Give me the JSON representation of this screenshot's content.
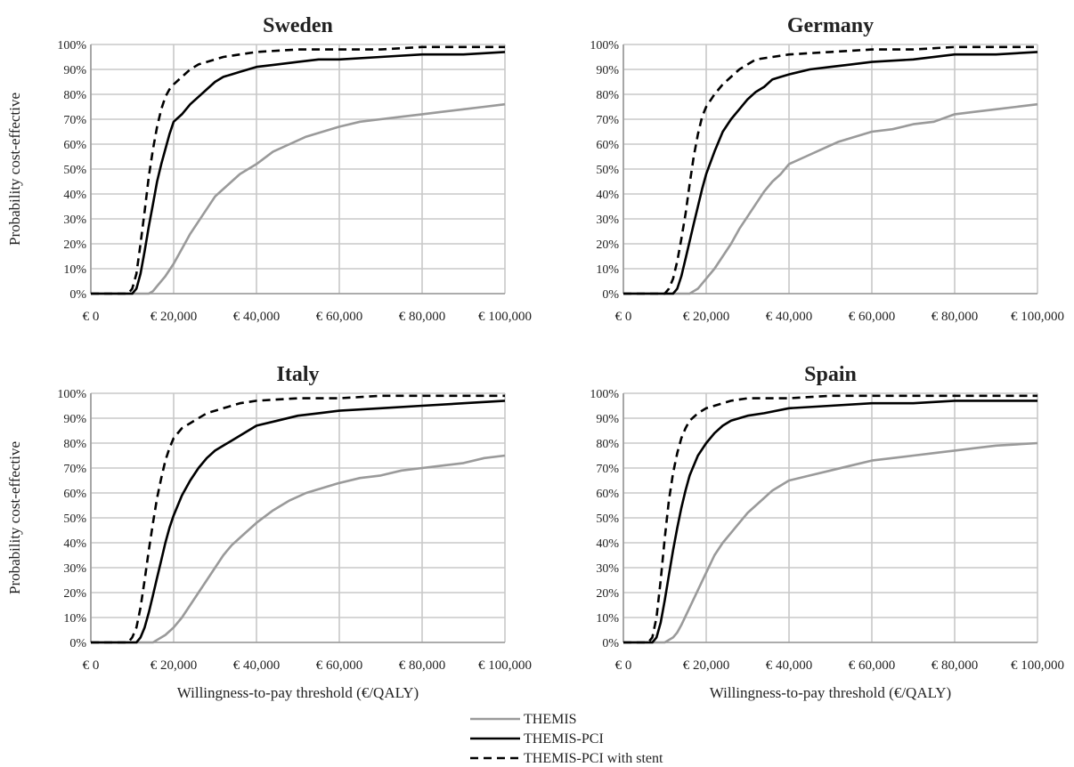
{
  "chart_data": [
    {
      "type": "line",
      "title": "Sweden",
      "ylabel": "Probability cost-effective",
      "xlabel": "",
      "xlim": [
        0,
        100000
      ],
      "ylim": [
        0,
        100
      ],
      "grid": true,
      "x_tick_labels": [
        "€ 0",
        "€ 20,000",
        "€ 40,000",
        "€ 60,000",
        "€ 80,000",
        "€ 100,000"
      ],
      "y_tick_labels": [
        "0%",
        "10%",
        "20%",
        "30%",
        "40%",
        "50%",
        "60%",
        "70%",
        "80%",
        "90%",
        "100%"
      ],
      "series": [
        {
          "name": "THEMIS",
          "x": [
            0,
            14000,
            15000,
            16000,
            18000,
            20000,
            22000,
            24000,
            26000,
            28000,
            30000,
            32000,
            34000,
            36000,
            38000,
            40000,
            44000,
            48000,
            52000,
            56000,
            60000,
            65000,
            70000,
            75000,
            80000,
            85000,
            90000,
            95000,
            100000
          ],
          "y": [
            0,
            0,
            1,
            3,
            7,
            12,
            18,
            24,
            29,
            34,
            39,
            42,
            45,
            48,
            50,
            52,
            57,
            60,
            63,
            65,
            67,
            69,
            70,
            71,
            72,
            73,
            74,
            75,
            76
          ]
        },
        {
          "name": "THEMIS-PCI",
          "x": [
            0,
            10000,
            11000,
            12000,
            13000,
            14000,
            15000,
            16000,
            17000,
            18000,
            19000,
            20000,
            22000,
            24000,
            26000,
            28000,
            30000,
            32000,
            34000,
            36000,
            38000,
            40000,
            45000,
            50000,
            55000,
            60000,
            70000,
            80000,
            90000,
            100000
          ],
          "y": [
            0,
            0,
            2,
            8,
            17,
            27,
            36,
            45,
            52,
            58,
            64,
            69,
            72,
            76,
            79,
            82,
            85,
            87,
            88,
            89,
            90,
            91,
            92,
            93,
            94,
            94,
            95,
            96,
            96,
            97
          ]
        },
        {
          "name": "THEMIS-PCI with stent",
          "x": [
            0,
            9000,
            10000,
            11000,
            12000,
            13000,
            14000,
            15000,
            16000,
            17000,
            18000,
            19000,
            20000,
            22000,
            24000,
            26000,
            28000,
            30000,
            32000,
            36000,
            40000,
            50000,
            60000,
            70000,
            80000,
            90000,
            100000
          ],
          "y": [
            0,
            0,
            2,
            8,
            20,
            33,
            47,
            58,
            67,
            74,
            79,
            82,
            84,
            87,
            90,
            92,
            93,
            94,
            95,
            96,
            97,
            98,
            98,
            98,
            99,
            99,
            99
          ]
        }
      ]
    },
    {
      "type": "line",
      "title": "Germany",
      "ylabel": "",
      "xlabel": "",
      "xlim": [
        0,
        100000
      ],
      "ylim": [
        0,
        100
      ],
      "grid": true,
      "x_tick_labels": [
        "€ 0",
        "€ 20,000",
        "€ 40,000",
        "€ 60,000",
        "€ 80,000",
        "€ 100,000"
      ],
      "y_tick_labels": [
        "0%",
        "10%",
        "20%",
        "30%",
        "40%",
        "50%",
        "60%",
        "70%",
        "80%",
        "90%",
        "100%"
      ],
      "series": [
        {
          "name": "THEMIS",
          "x": [
            0,
            16000,
            17000,
            18000,
            20000,
            22000,
            24000,
            26000,
            28000,
            30000,
            32000,
            34000,
            36000,
            38000,
            40000,
            44000,
            48000,
            52000,
            56000,
            60000,
            65000,
            70000,
            75000,
            80000,
            85000,
            90000,
            95000,
            100000
          ],
          "y": [
            0,
            0,
            1,
            2,
            6,
            10,
            15,
            20,
            26,
            31,
            36,
            41,
            45,
            48,
            52,
            55,
            58,
            61,
            63,
            65,
            66,
            68,
            69,
            72,
            73,
            74,
            75,
            76
          ]
        },
        {
          "name": "THEMIS-PCI",
          "x": [
            0,
            12000,
            13000,
            14000,
            15000,
            16000,
            17000,
            18000,
            19000,
            20000,
            22000,
            24000,
            26000,
            28000,
            30000,
            32000,
            34000,
            36000,
            38000,
            40000,
            45000,
            50000,
            55000,
            60000,
            70000,
            80000,
            90000,
            100000
          ],
          "y": [
            0,
            0,
            2,
            7,
            14,
            21,
            28,
            35,
            42,
            48,
            57,
            65,
            70,
            74,
            78,
            81,
            83,
            86,
            87,
            88,
            90,
            91,
            92,
            93,
            94,
            96,
            96,
            97
          ]
        },
        {
          "name": "THEMIS-PCI with stent",
          "x": [
            0,
            10000,
            11000,
            12000,
            13000,
            14000,
            15000,
            16000,
            17000,
            18000,
            19000,
            20000,
            22000,
            24000,
            26000,
            28000,
            30000,
            32000,
            36000,
            40000,
            50000,
            60000,
            70000,
            80000,
            90000,
            100000
          ],
          "y": [
            0,
            0,
            2,
            6,
            13,
            22,
            32,
            44,
            55,
            64,
            71,
            75,
            80,
            84,
            87,
            90,
            92,
            94,
            95,
            96,
            97,
            98,
            98,
            99,
            99,
            99
          ]
        }
      ]
    },
    {
      "type": "line",
      "title": "Italy",
      "ylabel": "Probability cost-effective",
      "xlabel": "Willingness-to-pay threshold (€/QALY)",
      "xlim": [
        0,
        100000
      ],
      "ylim": [
        0,
        100
      ],
      "grid": true,
      "x_tick_labels": [
        "€ 0",
        "€ 20,000",
        "€ 40,000",
        "€ 60,000",
        "€ 80,000",
        "€ 100,000"
      ],
      "y_tick_labels": [
        "0%",
        "10%",
        "20%",
        "30%",
        "40%",
        "50%",
        "60%",
        "70%",
        "80%",
        "90%",
        "100%"
      ],
      "series": [
        {
          "name": "THEMIS",
          "x": [
            0,
            15000,
            16000,
            17000,
            18000,
            20000,
            22000,
            24000,
            26000,
            28000,
            30000,
            32000,
            34000,
            36000,
            38000,
            40000,
            44000,
            48000,
            52000,
            56000,
            60000,
            65000,
            70000,
            75000,
            80000,
            85000,
            90000,
            95000,
            100000
          ],
          "y": [
            0,
            0,
            1,
            2,
            3,
            6,
            10,
            15,
            20,
            25,
            30,
            35,
            39,
            42,
            45,
            48,
            53,
            57,
            60,
            62,
            64,
            66,
            67,
            69,
            70,
            71,
            72,
            74,
            75
          ]
        },
        {
          "name": "THEMIS-PCI",
          "x": [
            0,
            11000,
            12000,
            13000,
            14000,
            15000,
            16000,
            17000,
            18000,
            19000,
            20000,
            22000,
            24000,
            26000,
            28000,
            30000,
            32000,
            34000,
            36000,
            38000,
            40000,
            45000,
            50000,
            55000,
            60000,
            70000,
            80000,
            90000,
            100000
          ],
          "y": [
            0,
            0,
            2,
            6,
            12,
            19,
            26,
            33,
            40,
            46,
            51,
            59,
            65,
            70,
            74,
            77,
            79,
            81,
            83,
            85,
            87,
            89,
            91,
            92,
            93,
            94,
            95,
            96,
            97
          ]
        },
        {
          "name": "THEMIS-PCI with stent",
          "x": [
            0,
            9000,
            10000,
            11000,
            12000,
            13000,
            14000,
            15000,
            16000,
            17000,
            18000,
            19000,
            20000,
            22000,
            24000,
            26000,
            28000,
            30000,
            32000,
            36000,
            40000,
            50000,
            60000,
            70000,
            80000,
            90000,
            100000
          ],
          "y": [
            0,
            0,
            2,
            6,
            14,
            25,
            37,
            48,
            58,
            66,
            73,
            78,
            82,
            86,
            88,
            90,
            92,
            93,
            94,
            96,
            97,
            98,
            98,
            99,
            99,
            99,
            99
          ]
        }
      ]
    },
    {
      "type": "line",
      "title": "Spain",
      "ylabel": "",
      "xlabel": "Willingness-to-pay threshold (€/QALY)",
      "xlim": [
        0,
        100000
      ],
      "ylim": [
        0,
        100
      ],
      "grid": true,
      "x_tick_labels": [
        "€ 0",
        "€ 20,000",
        "€ 40,000",
        "€ 60,000",
        "€ 80,000",
        "€ 100,000"
      ],
      "y_tick_labels": [
        "0%",
        "10%",
        "20%",
        "30%",
        "40%",
        "50%",
        "60%",
        "70%",
        "80%",
        "90%",
        "100%"
      ],
      "series": [
        {
          "name": "THEMIS",
          "x": [
            0,
            10000,
            11000,
            12000,
            13000,
            14000,
            16000,
            18000,
            20000,
            22000,
            24000,
            26000,
            28000,
            30000,
            32000,
            34000,
            36000,
            38000,
            40000,
            45000,
            50000,
            55000,
            60000,
            65000,
            70000,
            75000,
            80000,
            85000,
            90000,
            100000
          ],
          "y": [
            0,
            0,
            1,
            2,
            4,
            7,
            14,
            21,
            28,
            35,
            40,
            44,
            48,
            52,
            55,
            58,
            61,
            63,
            65,
            67,
            69,
            71,
            73,
            74,
            75,
            76,
            77,
            78,
            79,
            80
          ]
        },
        {
          "name": "THEMIS-PCI",
          "x": [
            0,
            7000,
            8000,
            9000,
            10000,
            11000,
            12000,
            13000,
            14000,
            15000,
            16000,
            17000,
            18000,
            20000,
            22000,
            24000,
            26000,
            28000,
            30000,
            34000,
            40000,
            50000,
            60000,
            70000,
            80000,
            90000,
            100000
          ],
          "y": [
            0,
            0,
            2,
            8,
            17,
            27,
            37,
            46,
            54,
            61,
            67,
            71,
            75,
            80,
            84,
            87,
            89,
            90,
            91,
            92,
            94,
            95,
            96,
            96,
            97,
            97,
            97
          ]
        },
        {
          "name": "THEMIS-PCI with stent",
          "x": [
            0,
            6000,
            7000,
            8000,
            9000,
            10000,
            11000,
            12000,
            13000,
            14000,
            15000,
            16000,
            18000,
            20000,
            22000,
            24000,
            26000,
            30000,
            40000,
            50000,
            60000,
            80000,
            100000
          ],
          "y": [
            0,
            0,
            2,
            10,
            25,
            42,
            57,
            68,
            76,
            82,
            86,
            89,
            92,
            94,
            95,
            96,
            97,
            98,
            98,
            99,
            99,
            99,
            99
          ]
        }
      ]
    }
  ],
  "legend": {
    "items": [
      {
        "label": "THEMIS",
        "color": "#9a9a9a",
        "dash": "solid"
      },
      {
        "label": "THEMIS-PCI",
        "color": "#000000",
        "dash": "solid"
      },
      {
        "label": "THEMIS-PCI with stent",
        "color": "#000000",
        "dash": "dashed"
      }
    ]
  },
  "colors": {
    "grid": "#c8c8c8",
    "axis": "#999999",
    "themis": "#9a9a9a",
    "themis_pci": "#000000",
    "themis_pci_stent": "#000000"
  }
}
